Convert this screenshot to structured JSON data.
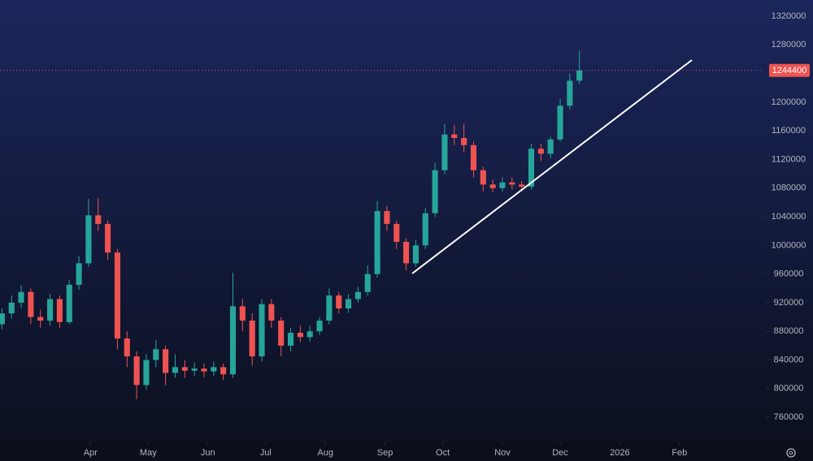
{
  "chart_data": {
    "type": "candlestick",
    "x": [
      -46,
      -41,
      -36,
      -31,
      -26,
      -21,
      -16,
      -11,
      -6,
      -1,
      4,
      9,
      14,
      19,
      24,
      29,
      34,
      39,
      44,
      49,
      54,
      59,
      64,
      69,
      74,
      79,
      84,
      89,
      94,
      99,
      104,
      109,
      114,
      119,
      124,
      129,
      134,
      139,
      144,
      149,
      154,
      159,
      164,
      169,
      174,
      179,
      184,
      189,
      194,
      199,
      204,
      209,
      214,
      219,
      224,
      229,
      234,
      239,
      244,
      249,
      254
    ],
    "open": [
      890000,
      905000,
      920000,
      935000,
      900000,
      895000,
      925000,
      893000,
      945000,
      975000,
      1042000,
      1030000,
      990000,
      870000,
      845000,
      805000,
      840000,
      855000,
      822000,
      830000,
      825000,
      828000,
      824000,
      830000,
      820000,
      915000,
      895000,
      845000,
      918000,
      895000,
      860000,
      878000,
      872000,
      880000,
      895000,
      930000,
      912000,
      925000,
      935000,
      960000,
      1048000,
      1030000,
      1005000,
      975000,
      1000000,
      1045000,
      1105000,
      1155000,
      1150000,
      1140000,
      1105000,
      1085000,
      1080000,
      1088000,
      1085000,
      1082000,
      1135000,
      1128000,
      1148000,
      1195000,
      1230000
    ],
    "high": [
      912000,
      930000,
      945000,
      940000,
      910000,
      932000,
      930000,
      952000,
      985000,
      1065000,
      1066000,
      1035000,
      995000,
      880000,
      852000,
      848000,
      868000,
      860000,
      848000,
      840000,
      836000,
      835000,
      838000,
      835000,
      962000,
      925000,
      905000,
      925000,
      925000,
      900000,
      885000,
      888000,
      888000,
      900000,
      940000,
      935000,
      932000,
      942000,
      972000,
      1062000,
      1055000,
      1035000,
      1010000,
      1008000,
      1052000,
      1115000,
      1170000,
      1168000,
      1170000,
      1145000,
      1110000,
      1092000,
      1095000,
      1095000,
      1090000,
      1142000,
      1142000,
      1152000,
      1205000,
      1240000,
      1272000
    ],
    "low": [
      883000,
      898000,
      912000,
      890000,
      885000,
      888000,
      885000,
      890000,
      938000,
      970000,
      1020000,
      980000,
      855000,
      830000,
      785000,
      798000,
      830000,
      805000,
      815000,
      815000,
      818000,
      816000,
      818000,
      812000,
      815000,
      880000,
      832000,
      838000,
      885000,
      845000,
      852000,
      865000,
      866000,
      875000,
      890000,
      905000,
      906000,
      920000,
      930000,
      955000,
      1020000,
      995000,
      965000,
      970000,
      995000,
      1040000,
      1100000,
      1140000,
      1130000,
      1095000,
      1075000,
      1074000,
      1075000,
      1078000,
      1076000,
      1078000,
      1118000,
      1122000,
      1145000,
      1190000,
      1225000
    ],
    "close": [
      905000,
      920000,
      935000,
      900000,
      895000,
      925000,
      893000,
      945000,
      975000,
      1042000,
      1030000,
      990000,
      870000,
      845000,
      805000,
      840000,
      855000,
      822000,
      830000,
      825000,
      828000,
      824000,
      830000,
      820000,
      915000,
      895000,
      845000,
      918000,
      895000,
      860000,
      878000,
      872000,
      880000,
      895000,
      930000,
      912000,
      925000,
      935000,
      960000,
      1048000,
      1030000,
      1005000,
      975000,
      1000000,
      1045000,
      1105000,
      1155000,
      1150000,
      1140000,
      1105000,
      1085000,
      1080000,
      1088000,
      1085000,
      1082000,
      1135000,
      1128000,
      1148000,
      1195000,
      1230000,
      1244400
    ],
    "up_color": "#26a69a",
    "down_color": "#ef5350",
    "xlim": [
      -47,
      350
    ],
    "ylim": [
      725000,
      1342700
    ],
    "yticks": [
      760000,
      800000,
      840000,
      880000,
      920000,
      960000,
      1000000,
      1040000,
      1080000,
      1120000,
      1160000,
      1200000,
      1240000,
      1280000,
      1320000
    ],
    "xticks": [
      {
        "value": 0,
        "label": "Apr"
      },
      {
        "value": 30,
        "label": "May"
      },
      {
        "value": 61,
        "label": "Jun"
      },
      {
        "value": 91,
        "label": "Jul"
      },
      {
        "value": 122,
        "label": "Aug"
      },
      {
        "value": 153,
        "label": "Sep"
      },
      {
        "value": 183,
        "label": "Oct"
      },
      {
        "value": 214,
        "label": "Nov"
      },
      {
        "value": 244,
        "label": "Dec"
      },
      {
        "value": 275,
        "label": "2026"
      },
      {
        "value": 306,
        "label": "Feb"
      }
    ]
  }
}
